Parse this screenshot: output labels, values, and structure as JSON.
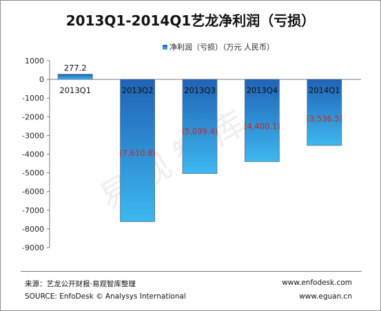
{
  "title": "2013Q1-2014Q1艺龙净利润（亏损）",
  "legend_label": "净利润（亏损）（万元 人民币）",
  "watermark": "易观智库",
  "footer": {
    "source_cn": "来源：艺龙公开财报·易观智库整理",
    "source_en": "SOURCE: EnfoDesk © Analysys International",
    "url1": "www.enfodesk.com",
    "url2": "www.eguan.cn"
  },
  "colors": {
    "bar_top": "#1f63b7",
    "bar_bottom": "#3db8ee",
    "label_negative": "#cc2222",
    "label_positive": "#111111"
  },
  "chart_data": {
    "type": "bar",
    "categories": [
      "2013Q1",
      "2013Q2",
      "2013Q3",
      "2013Q4",
      "2014Q1"
    ],
    "series": [
      {
        "name": "净利润（亏损）（万元 人民币）",
        "values": [
          277.2,
          -7610.8,
          -5039.4,
          -4400.1,
          -3536.5
        ]
      }
    ],
    "data_labels": [
      "277.2",
      "(7,610.8)",
      "(5,039.4)",
      "(4,400.1)",
      "(3,536.5)"
    ],
    "ylim": [
      -9000,
      1000
    ],
    "yticks": [
      1000,
      0,
      -1000,
      -2000,
      -3000,
      -4000,
      -5000,
      -6000,
      -7000,
      -8000,
      -9000
    ],
    "ytick_labels": [
      "1000",
      "0",
      "-1000",
      "-2000",
      "-3000",
      "-4000",
      "-5000",
      "-6000",
      "-7000",
      "-8000",
      "-9000"
    ],
    "grid": false,
    "legend_position": "top-center"
  }
}
